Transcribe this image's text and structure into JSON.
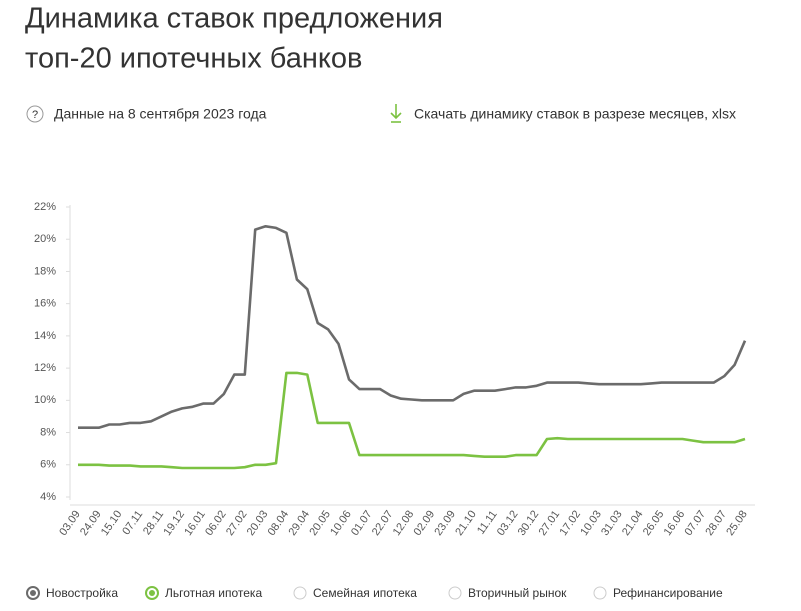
{
  "header": {
    "title": [
      "Динамика ставок предложения",
      "топ-20 ипотечных банков"
    ],
    "date_note": "Данные на 8 сентября 2023 года",
    "download": "Скачать динамику ставок в разрезе месяцев, xlsx"
  },
  "chart_data": {
    "type": "line",
    "categories": [
      "03.09",
      null,
      "24.09",
      null,
      "15.10",
      null,
      "07.11",
      null,
      "28.11",
      null,
      "19.12",
      null,
      "16.01",
      null,
      "06.02",
      null,
      "27.02",
      null,
      "20.03",
      null,
      "08.04",
      null,
      "29.04",
      null,
      "20.05",
      null,
      "10.06",
      null,
      "01.07",
      null,
      "22.07",
      null,
      "12.08",
      null,
      "02.09",
      null,
      "23.09",
      null,
      "21.10",
      null,
      "11.11",
      null,
      "03.12",
      null,
      "30.12",
      null,
      "27.01",
      null,
      "17.02",
      null,
      "10.03",
      null,
      "31.03",
      null,
      "21.04",
      null,
      "26.05",
      null,
      "16.06",
      null,
      "07.07",
      null,
      "28.07",
      null,
      "25.08"
    ],
    "series": [
      {
        "name": "Новостройка",
        "color": "#6b6b6b",
        "values": [
          8.3,
          8.3,
          8.3,
          8.5,
          8.5,
          8.6,
          8.6,
          8.7,
          9.0,
          9.3,
          9.5,
          9.6,
          9.8,
          9.8,
          10.4,
          11.6,
          11.6,
          20.6,
          20.8,
          20.7,
          20.4,
          17.5,
          16.9,
          14.8,
          14.4,
          13.5,
          11.3,
          10.7,
          10.7,
          10.7,
          10.3,
          10.1,
          10.05,
          10.0,
          10.0,
          10.0,
          10.0,
          10.4,
          10.6,
          10.6,
          10.6,
          10.7,
          10.8,
          10.8,
          10.9,
          11.1,
          11.1,
          11.1,
          11.1,
          11.05,
          11.0,
          11.0,
          11.0,
          11.0,
          11.0,
          11.05,
          11.1,
          11.1,
          11.1,
          11.1,
          11.1,
          11.1,
          11.5,
          12.2,
          13.7
        ]
      },
      {
        "name": "Льготная ипотека",
        "color": "#7cc242",
        "values": [
          6.0,
          6.0,
          6.0,
          5.95,
          5.95,
          5.95,
          5.9,
          5.9,
          5.9,
          5.85,
          5.8,
          5.8,
          5.8,
          5.8,
          5.8,
          5.8,
          5.85,
          6.0,
          6.0,
          6.1,
          11.7,
          11.7,
          11.6,
          8.6,
          8.6,
          8.6,
          8.6,
          6.6,
          6.6,
          6.6,
          6.6,
          6.6,
          6.6,
          6.6,
          6.6,
          6.6,
          6.6,
          6.6,
          6.55,
          6.5,
          6.5,
          6.5,
          6.6,
          6.6,
          6.6,
          7.6,
          7.65,
          7.6,
          7.6,
          7.6,
          7.6,
          7.6,
          7.6,
          7.6,
          7.6,
          7.6,
          7.6,
          7.6,
          7.6,
          7.5,
          7.4,
          7.4,
          7.4,
          7.4,
          7.6
        ]
      }
    ],
    "inactive_legend": [
      "Семейная ипотека",
      "Вторичный рынок",
      "Рефинансирование"
    ],
    "ylim": [
      4,
      22
    ],
    "yticks": [
      {
        "value": 4,
        "label": "4%"
      },
      {
        "value": 6,
        "label": "6%"
      },
      {
        "value": 8,
        "label": "8%"
      },
      {
        "value": 10,
        "label": "10%"
      },
      {
        "value": 12,
        "label": "12%"
      },
      {
        "value": 14,
        "label": "14%"
      },
      {
        "value": 16,
        "label": "16%"
      },
      {
        "value": 18,
        "label": "18%"
      },
      {
        "value": 20,
        "label": "20%"
      },
      {
        "value": 22,
        "label": "22%"
      }
    ],
    "grid": false
  }
}
